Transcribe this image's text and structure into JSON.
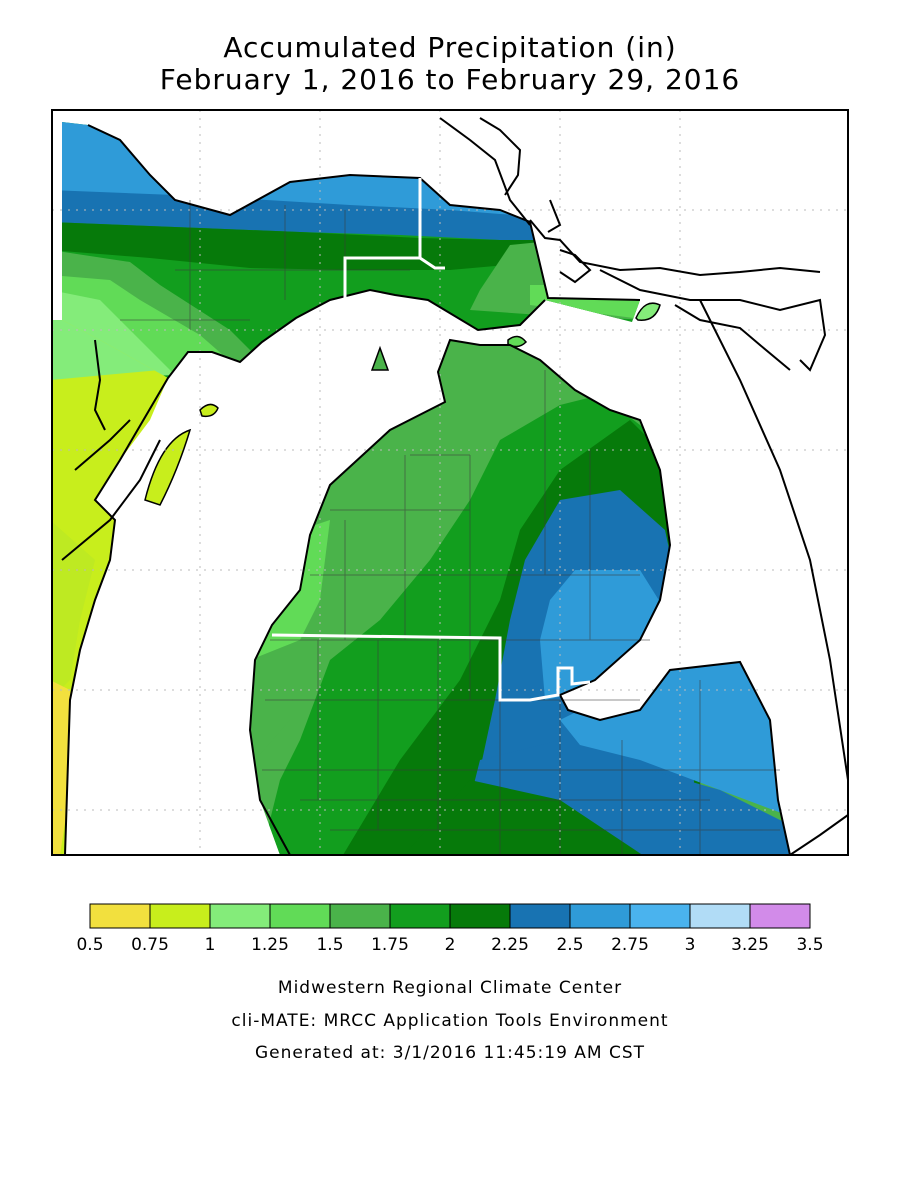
{
  "title": {
    "line1": "Accumulated Precipitation (in)",
    "line2": "February 1, 2016 to February 29, 2016"
  },
  "legend": {
    "ticks": [
      "0.5",
      "0.75",
      "1",
      "1.25",
      "1.5",
      "1.75",
      "2",
      "2.25",
      "2.5",
      "2.75",
      "3",
      "3.25",
      "3.5"
    ],
    "colors": [
      "#f2e03e",
      "#c8ee1c",
      "#84ec7a",
      "#61db57",
      "#4ab34a",
      "#129e1e",
      "#067a0a",
      "#1873b2",
      "#2f9bd8",
      "#4ab3ee",
      "#b1dcf6",
      "#d28be9"
    ]
  },
  "credits": {
    "org": "Midwestern Regional Climate Center",
    "tool": "cli-MATE: MRCC Application Tools Environment",
    "generated": "Generated at: 3/1/2016 11:45:19 AM CST"
  }
}
